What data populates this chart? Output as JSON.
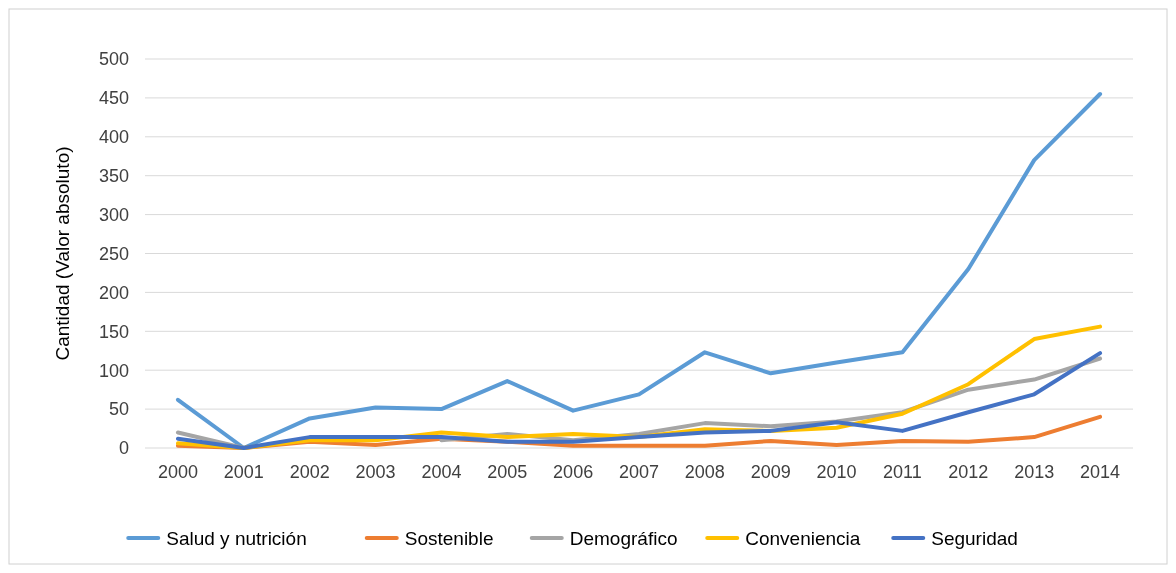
{
  "chart_data": {
    "type": "line",
    "ylabel": "Cantidad (Valor absoluto)",
    "categories": [
      "2000",
      "2001",
      "2002",
      "2003",
      "2004",
      "2005",
      "2006",
      "2007",
      "2008",
      "2009",
      "2010",
      "2011",
      "2012",
      "2013",
      "2014"
    ],
    "series": [
      {
        "name": "Salud y nutrición",
        "color": "#5b9bd5",
        "values": [
          62,
          0,
          38,
          52,
          50,
          86,
          48,
          69,
          123,
          96,
          110,
          123,
          230,
          370,
          455
        ]
      },
      {
        "name": "Sostenible",
        "color": "#ed7d31",
        "values": [
          3,
          0,
          8,
          4,
          12,
          8,
          3,
          3,
          3,
          9,
          4,
          9,
          8,
          14,
          40
        ]
      },
      {
        "name": "Demográfico",
        "color": "#a5a5a5",
        "values": [
          20,
          0,
          null,
          null,
          10,
          18,
          10,
          18,
          32,
          28,
          34,
          46,
          75,
          88,
          115
        ]
      },
      {
        "name": "Conveniencia",
        "color": "#ffc000",
        "values": [
          6,
          0,
          10,
          10,
          20,
          14,
          18,
          14,
          24,
          22,
          26,
          44,
          82,
          140,
          156
        ]
      },
      {
        "name": "Seguridad",
        "color": "#4472c4",
        "values": [
          12,
          0,
          14,
          14,
          14,
          8,
          8,
          14,
          20,
          22,
          33,
          22,
          46,
          69,
          122
        ]
      }
    ],
    "ylim": [
      0,
      500
    ],
    "yticks": [
      0,
      50,
      100,
      150,
      200,
      250,
      300,
      350,
      400,
      450,
      500
    ],
    "grid": "y",
    "legend": "bottom",
    "marker": "none",
    "line_style": "solid"
  }
}
